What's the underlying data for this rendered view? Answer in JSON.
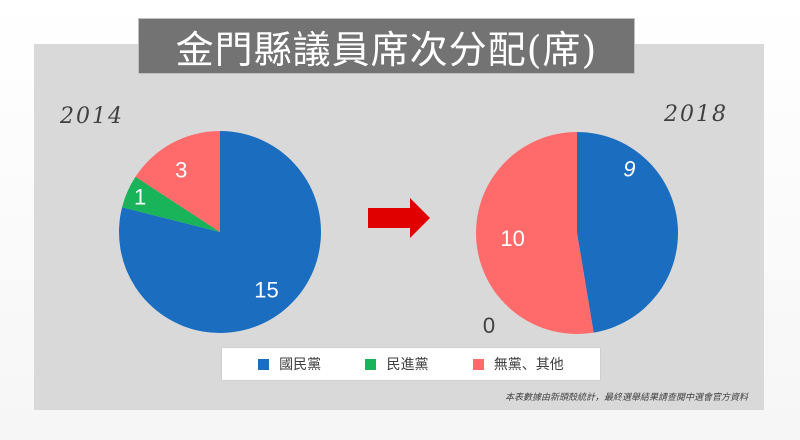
{
  "title": "金門縣議員席次分配(席)",
  "footnote": "本表數據由新頭殼統計，最終選舉結果請查閱中選會官方資料",
  "colors": {
    "kmt": "#1a6dbf",
    "dpp": "#19b35a",
    "others": "#ff6b6b",
    "arrow": "#e00000"
  },
  "chart_data": [
    {
      "type": "pie",
      "title": "2014",
      "categories": [
        "國民黨",
        "民進黨",
        "無黨、其他"
      ],
      "values": [
        15,
        1,
        3
      ],
      "labels": [
        "15",
        "1",
        "3"
      ]
    },
    {
      "type": "pie",
      "title": "2018",
      "categories": [
        "國民黨",
        "民進黨",
        "無黨、其他"
      ],
      "values": [
        9,
        0,
        10
      ],
      "labels": [
        "9",
        "0",
        "10"
      ]
    }
  ],
  "legend": [
    {
      "label": "國民黨",
      "color": "#1a6dbf"
    },
    {
      "label": "民進黨",
      "color": "#19b35a"
    },
    {
      "label": "無黨、其他",
      "color": "#ff6b6b"
    }
  ]
}
